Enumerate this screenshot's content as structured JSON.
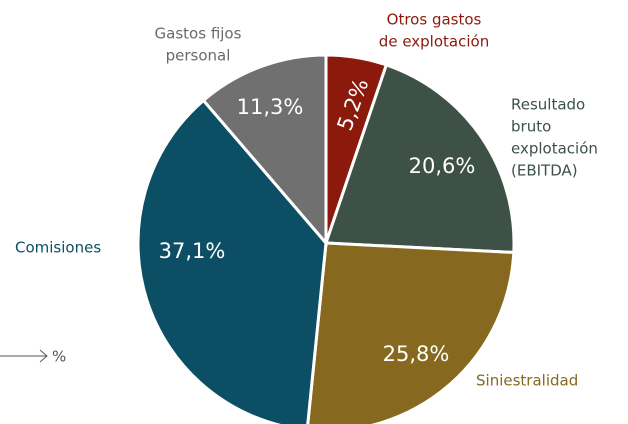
{
  "chart_data": {
    "type": "pie",
    "categories": [
      [
        "Otros gastos",
        "de explotación"
      ],
      [
        "Resultado",
        "bruto",
        "explotación",
        "(EBITDA)"
      ],
      [
        "Siniestralidad"
      ],
      [
        "Comisiones"
      ],
      [
        "Gastos fijos",
        "personal"
      ]
    ],
    "values": [
      5.2,
      20.6,
      25.8,
      37.1,
      11.3
    ],
    "value_labels": [
      "5,2%",
      "20,6%",
      "25,8%",
      "37,1%",
      "11,3%"
    ],
    "colors": [
      "#8c1a0c",
      "#3e5146",
      "#86691e",
      "#0c4f64",
      "#707070"
    ],
    "unit_label": "%"
  }
}
